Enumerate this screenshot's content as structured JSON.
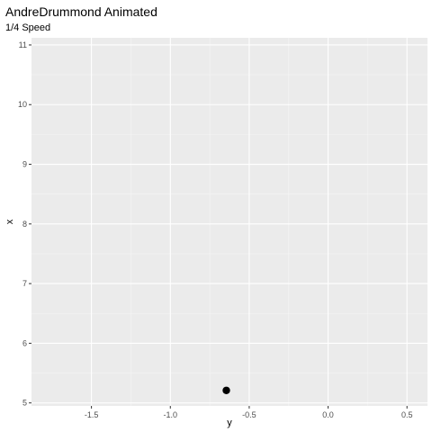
{
  "chart_data": {
    "type": "scatter",
    "title": "AndreDrummond Animated",
    "subtitle": "1/4 Speed",
    "xlabel": "y",
    "ylabel": "x",
    "xlim": [
      -1.88,
      0.63
    ],
    "ylim": [
      4.95,
      11.12
    ],
    "xticks": [
      -1.5,
      -1.0,
      -0.5,
      0.0,
      0.5
    ],
    "xtick_labels": [
      "-1.5",
      "-1.0",
      "-0.5",
      "0.0",
      "0.5"
    ],
    "yticks": [
      5,
      6,
      7,
      8,
      9,
      10,
      11
    ],
    "ytick_labels": [
      "5",
      "6",
      "7",
      "8",
      "9",
      "10",
      "11"
    ],
    "grid": true,
    "points": [
      {
        "x": -0.645,
        "y": 5.21
      }
    ],
    "colors": {
      "panel": "#EBEBEB",
      "grid_major": "#FFFFFF",
      "grid_minor": "#F5F5F5",
      "point": "#000000",
      "tick": "#333333"
    }
  }
}
